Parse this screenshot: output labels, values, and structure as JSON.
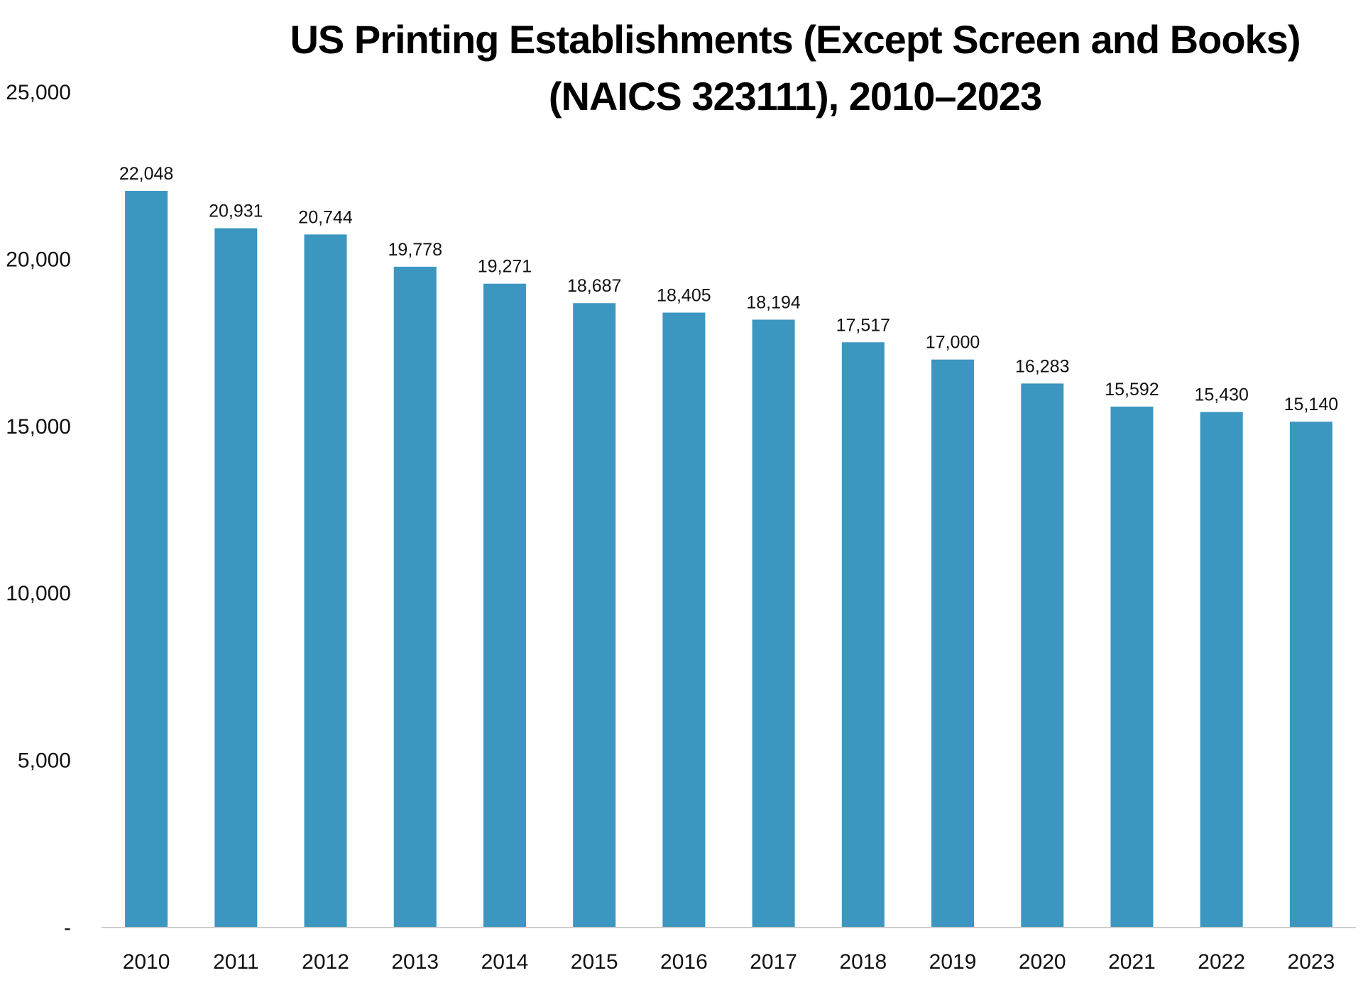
{
  "chart_data": {
    "type": "bar",
    "title": "US Printing Establishments (Except Screen and Books)",
    "subtitle": "(NAICS 323111), 2010–2023",
    "xlabel": "",
    "ylabel": "",
    "categories": [
      "2010",
      "2011",
      "2012",
      "2013",
      "2014",
      "2015",
      "2016",
      "2017",
      "2018",
      "2019",
      "2020",
      "2021",
      "2022",
      "2023"
    ],
    "values": [
      22048,
      20931,
      20744,
      19778,
      19271,
      18687,
      18405,
      18194,
      17517,
      17000,
      16283,
      15592,
      15430,
      15140
    ],
    "value_labels": [
      "22,048",
      "20,931",
      "20,744",
      "19,778",
      "19,271",
      "18,687",
      "18,405",
      "18,194",
      "17,517",
      "17,000",
      "16,283",
      "15,592",
      "15,430",
      "15,140"
    ],
    "ylim": [
      0,
      25000
    ],
    "yticks": [
      0,
      5000,
      10000,
      15000,
      20000,
      25000
    ],
    "ytick_labels": [
      "-",
      "5,000",
      "10,000",
      "15,000",
      "20,000",
      "25,000"
    ],
    "grid": false,
    "legend": "none",
    "bar_color": "#3B96C0"
  }
}
